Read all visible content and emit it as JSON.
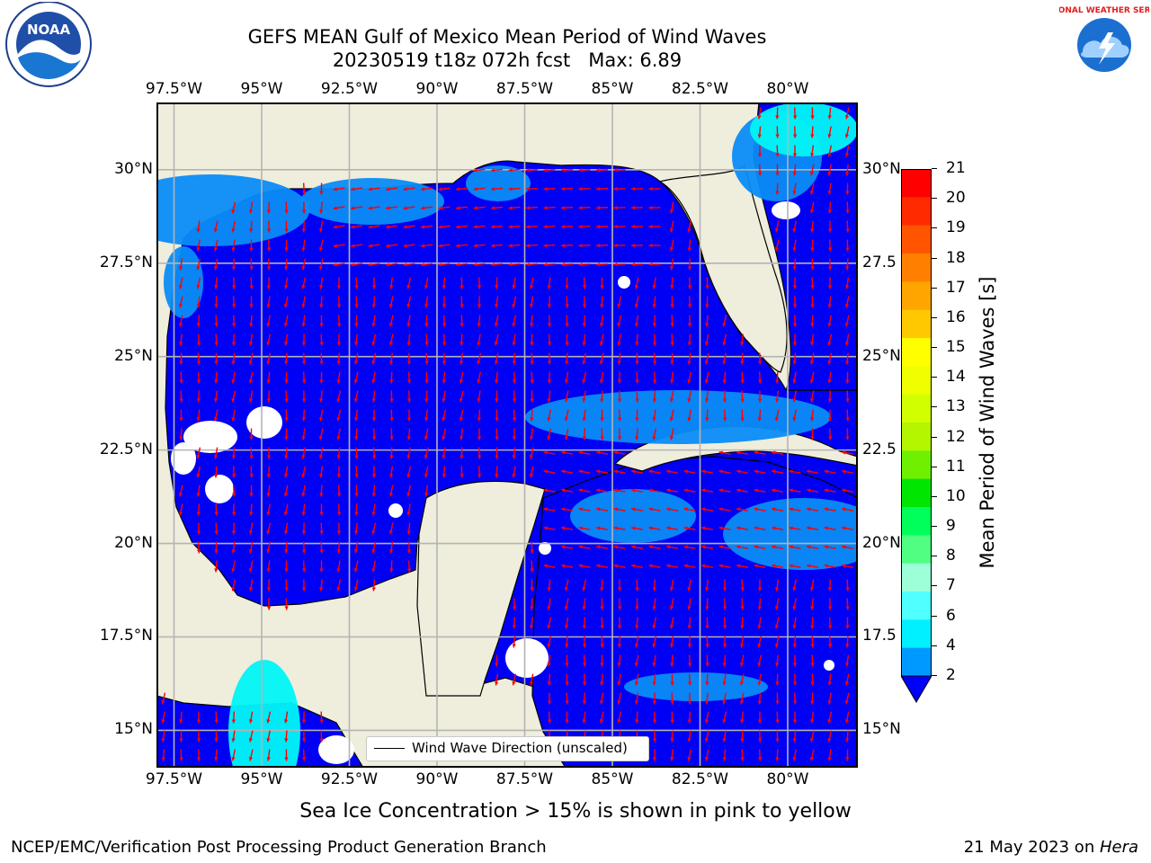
{
  "header": {
    "title_line1": "GEFS MEAN Gulf of Mexico Mean Period of Wind Waves",
    "title_line2": "20230519 t18z 072h fcst   Max: 6.89"
  },
  "logos": {
    "left": "noaa-logo",
    "right": "national-weather-service-logo",
    "right_text": "NATIONAL WEATHER SERVICE"
  },
  "map": {
    "x_ticks_top": [
      "97.5°W",
      "95°W",
      "92.5°W",
      "90°W",
      "87.5°W",
      "85°W",
      "82.5°W",
      "80°W"
    ],
    "x_ticks_bottom": [
      "97.5°W",
      "95°W",
      "92.5°W",
      "90°W",
      "87.5°W",
      "85°W",
      "82.5°W",
      "80°W"
    ],
    "y_ticks_left": [
      "30°N",
      "27.5°N",
      "25°N",
      "22.5°N",
      "20°N",
      "17.5°N",
      "15°N"
    ],
    "y_ticks_right": [
      "30°N",
      "27.5",
      "25°N",
      "22.5",
      "20°N",
      "17.5",
      "15°N"
    ],
    "lon_range": [
      -98.0,
      -78.0
    ],
    "lat_range": [
      14.0,
      31.8
    ],
    "colors": {
      "land": "#efeddc",
      "ocean_low": "#0000f5",
      "ocean_2_4": "#0a8cf5",
      "ocean_4_6": "#00f5f5",
      "arrow": "#ff0000",
      "grid": "#b4b4b4"
    },
    "dominant_wave_direction": "southward / westward"
  },
  "legend": {
    "label": "Wind Wave Direction (unscaled)"
  },
  "colorbar": {
    "label": "Mean Period of Wind Waves [s]",
    "ticks": [
      "21",
      "20",
      "19",
      "18",
      "17",
      "16",
      "15",
      "14",
      "13",
      "12",
      "11",
      "10",
      "9",
      "8",
      "7",
      "6",
      "4",
      "2"
    ],
    "colors": [
      "#ff0000",
      "#ff2a00",
      "#ff5500",
      "#ff8000",
      "#ffa500",
      "#ffc800",
      "#ffff00",
      "#f0ff00",
      "#d2ff00",
      "#b4f500",
      "#6ef000",
      "#00e600",
      "#00ff5a",
      "#50ff82",
      "#9cffd8",
      "#50ffff",
      "#00f0ff",
      "#0099ff",
      "#0000ff"
    ]
  },
  "footer": {
    "sea_ice_note": "Sea Ice Concentration > 15% is shown in pink to yellow",
    "credit": "NCEP/EMC/Verification Post Processing Product Generation Branch",
    "date_prefix": "21 May 2023 on ",
    "date_host": "Hera"
  }
}
